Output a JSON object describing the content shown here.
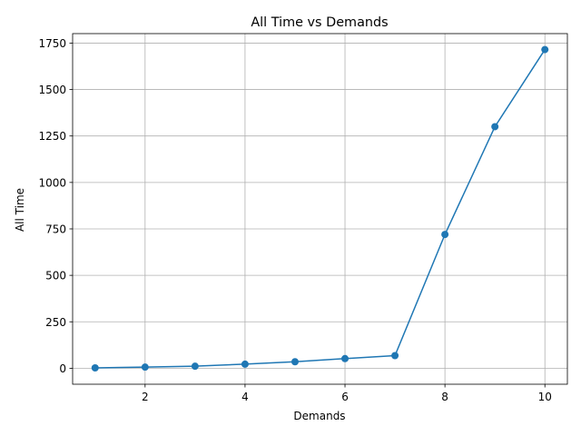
{
  "chart_data": {
    "type": "line",
    "title": "All Time vs Demands",
    "xlabel": "Demands",
    "ylabel": "All Time",
    "x": [
      1,
      2,
      3,
      4,
      5,
      6,
      7,
      8,
      9,
      10
    ],
    "series": [
      {
        "values": [
          2,
          6,
          11,
          22,
          35,
          52,
          68,
          720,
          1300,
          1715
        ],
        "color": "#1f77b4",
        "marker": "circle"
      }
    ],
    "xlim": [
      0.55,
      10.45
    ],
    "ylim": [
      -86,
      1801
    ],
    "xticks": [
      2,
      4,
      6,
      8,
      10
    ],
    "yticks": [
      0,
      250,
      500,
      750,
      1000,
      1250,
      1500,
      1750
    ],
    "grid": true,
    "legend": "none"
  }
}
